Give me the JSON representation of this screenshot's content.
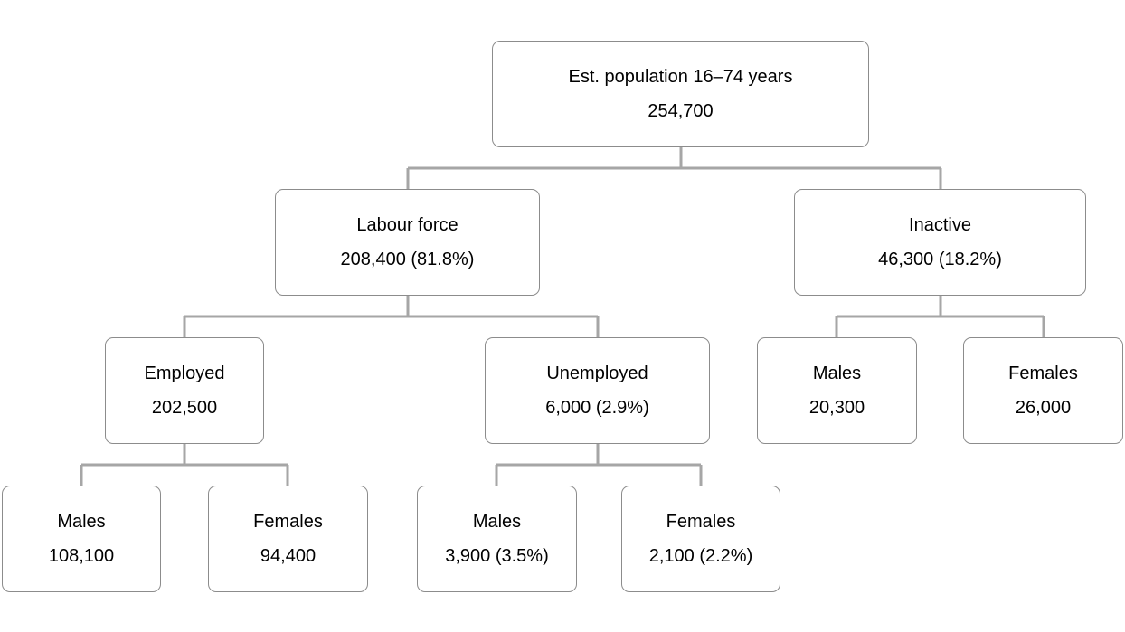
{
  "diagram": {
    "root": {
      "label": "Est. population 16–74 years",
      "value": "254,700"
    },
    "labour_force": {
      "label": "Labour force",
      "value": "208,400 (81.8%)"
    },
    "inactive": {
      "label": "Inactive",
      "value": "46,300 (18.2%)"
    },
    "employed": {
      "label": "Employed",
      "value": "202,500"
    },
    "unemployed": {
      "label": "Unemployed",
      "value": "6,000 (2.9%)"
    },
    "inactive_males": {
      "label": "Males",
      "value": "20,300"
    },
    "inactive_females": {
      "label": "Females",
      "value": "26,000"
    },
    "employed_males": {
      "label": "Males",
      "value": "108,100"
    },
    "employed_females": {
      "label": "Females",
      "value": "94,400"
    },
    "unemployed_males": {
      "label": "Males",
      "value": "3,900 (3.5%)"
    },
    "unemployed_females": {
      "label": "Females",
      "value": "2,100 (2.2%)"
    },
    "connector_color": "#a6a6a6",
    "border_color": "#8c8c8c"
  }
}
